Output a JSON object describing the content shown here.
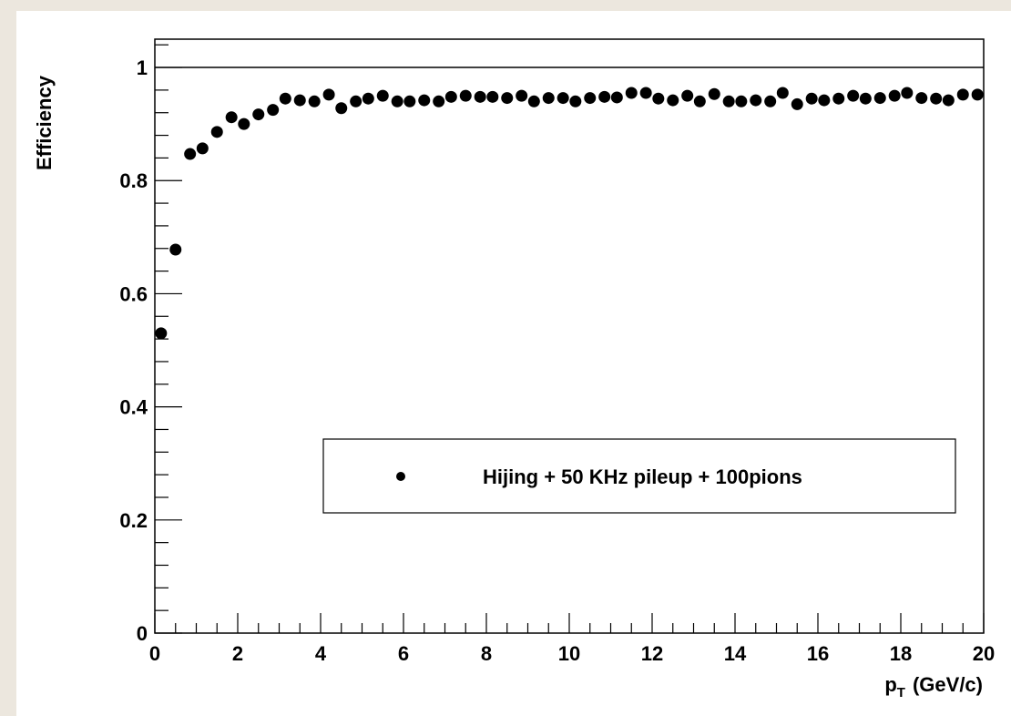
{
  "chart_data": {
    "type": "scatter",
    "title": "",
    "xlabel_main": "p",
    "xlabel_sub": "T",
    "xlabel_unit": "(GeV/c)",
    "ylabel": "Efficiency",
    "xlim": [
      0,
      20
    ],
    "ylim": [
      0,
      1.05
    ],
    "x_ticks": [
      "0",
      "2",
      "4",
      "6",
      "8",
      "10",
      "12",
      "14",
      "16",
      "18",
      "20"
    ],
    "y_ticks": [
      "0",
      "0.2",
      "0.4",
      "0.6",
      "0.8",
      "1"
    ],
    "reference_line_y": 1.0,
    "grid": false,
    "legend_position": "lower-center",
    "series": [
      {
        "name": "Hijing + 50 KHz pileup + 100pions",
        "color": "#000000",
        "x": [
          0.15,
          0.5,
          0.85,
          1.15,
          1.5,
          1.85,
          2.15,
          2.5,
          2.85,
          3.15,
          3.5,
          3.85,
          4.2,
          4.5,
          4.85,
          5.15,
          5.5,
          5.85,
          6.15,
          6.5,
          6.85,
          7.15,
          7.5,
          7.85,
          8.15,
          8.5,
          8.85,
          9.15,
          9.5,
          9.85,
          10.15,
          10.5,
          10.85,
          11.15,
          11.5,
          11.85,
          12.15,
          12.5,
          12.85,
          13.15,
          13.5,
          13.85,
          14.15,
          14.5,
          14.85,
          15.15,
          15.5,
          15.85,
          16.15,
          16.5,
          16.85,
          17.15,
          17.5,
          17.85,
          18.15,
          18.5,
          18.85,
          19.15,
          19.5,
          19.85
        ],
        "y": [
          0.53,
          0.678,
          0.847,
          0.857,
          0.886,
          0.912,
          0.9,
          0.917,
          0.925,
          0.945,
          0.942,
          0.94,
          0.952,
          0.928,
          0.94,
          0.945,
          0.95,
          0.94,
          0.94,
          0.942,
          0.94,
          0.948,
          0.95,
          0.948,
          0.948,
          0.946,
          0.95,
          0.94,
          0.946,
          0.946,
          0.94,
          0.946,
          0.948,
          0.947,
          0.955,
          0.955,
          0.945,
          0.942,
          0.95,
          0.94,
          0.953,
          0.94,
          0.94,
          0.942,
          0.94,
          0.955,
          0.935,
          0.945,
          0.942,
          0.945,
          0.95,
          0.945,
          0.946,
          0.95,
          0.955,
          0.946,
          0.945,
          0.942,
          0.952,
          0.952
        ]
      }
    ]
  }
}
